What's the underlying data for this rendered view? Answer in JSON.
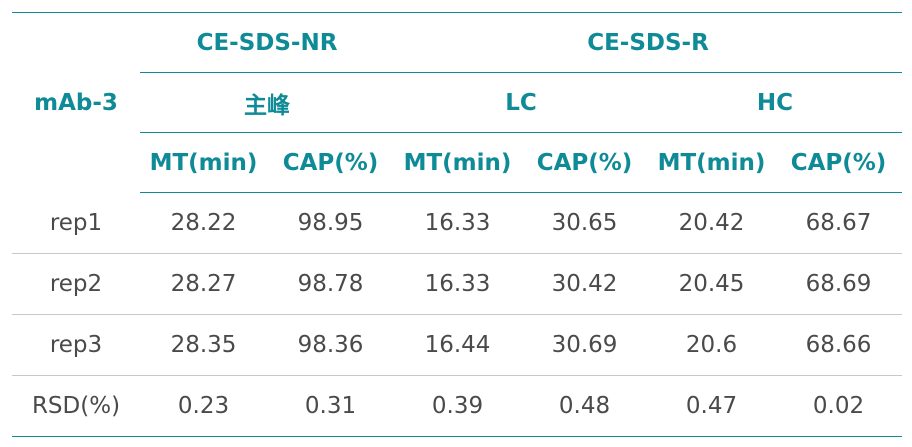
{
  "table": {
    "corner": "mAb-3",
    "groups": [
      "CE-SDS-NR",
      "CE-SDS-R"
    ],
    "subgroups": [
      "主峰",
      "LC",
      "HC"
    ],
    "columns": [
      "MT(min)",
      "CAP(%)",
      "MT(min)",
      "CAP(%)",
      "MT(min)",
      "CAP(%)"
    ],
    "rows": [
      [
        "rep1",
        "28.22",
        "98.95",
        "16.33",
        "30.65",
        "20.42",
        "68.67"
      ],
      [
        "rep2",
        "28.27",
        "98.78",
        "16.33",
        "30.42",
        "20.45",
        "68.69"
      ],
      [
        "rep3",
        "28.35",
        "98.36",
        "16.44",
        "30.69",
        "20.6",
        "68.66"
      ],
      [
        "RSD(%)",
        "0.23",
        "0.31",
        "0.39",
        "0.48",
        "0.47",
        "0.02"
      ]
    ]
  }
}
